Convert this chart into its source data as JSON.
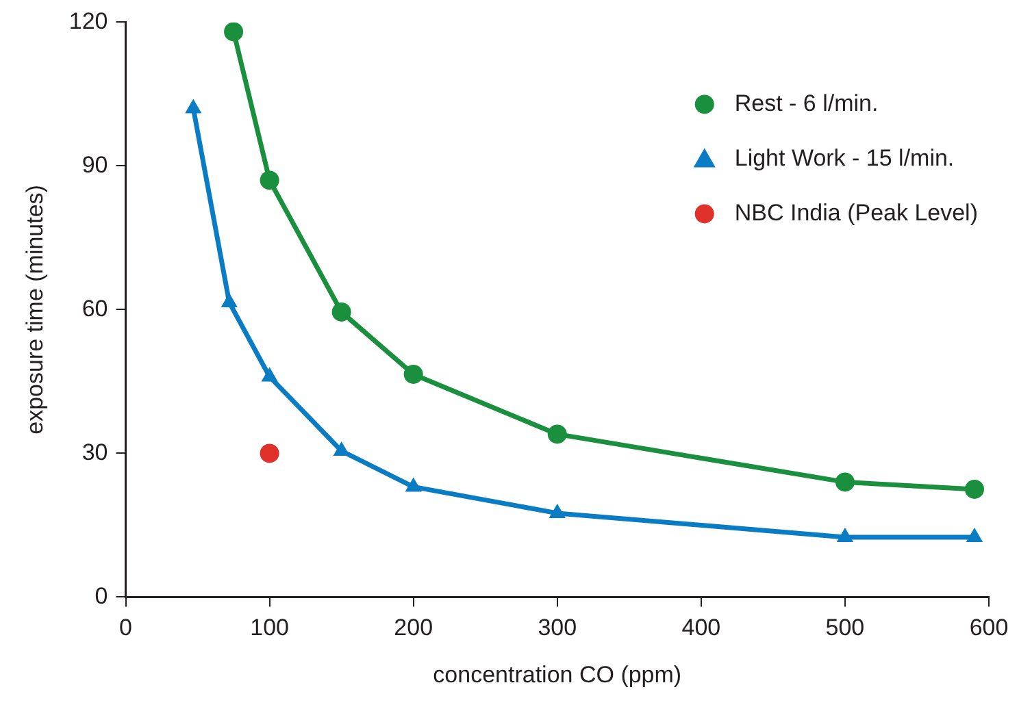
{
  "chart_data": {
    "type": "line",
    "xlabel": "concentration CO (ppm)",
    "ylabel": "exposure time (minutes)",
    "xlim": [
      0,
      600
    ],
    "xticks": [
      0,
      100,
      200,
      300,
      400,
      500,
      600
    ],
    "ylim": [
      0,
      120
    ],
    "yticks": [
      0,
      30,
      60,
      90,
      120
    ],
    "grid": false,
    "legend": "top right",
    "line_style": "solid",
    "series": [
      {
        "name": "Rest - 6 l/min.",
        "type": "line",
        "marker": "circle",
        "color": "#1a8f3e",
        "x": [
          75,
          100,
          150,
          200,
          300,
          500,
          590
        ],
        "values": [
          118,
          87,
          59.5,
          46.5,
          34,
          24,
          22.5
        ]
      },
      {
        "name": "Light Work - 15 l/min.",
        "type": "line",
        "marker": "triangle",
        "color": "#0a7cc4",
        "x": [
          47,
          72,
          100,
          150,
          200,
          300,
          500,
          590
        ],
        "values": [
          102,
          61.5,
          46,
          30.5,
          23,
          17.5,
          12.5,
          12.5
        ]
      },
      {
        "name": "NBC India (Peak Level)",
        "type": "scatter",
        "marker": "circle",
        "color": "#e0302a",
        "x": [
          100
        ],
        "values": [
          30
        ]
      }
    ]
  }
}
